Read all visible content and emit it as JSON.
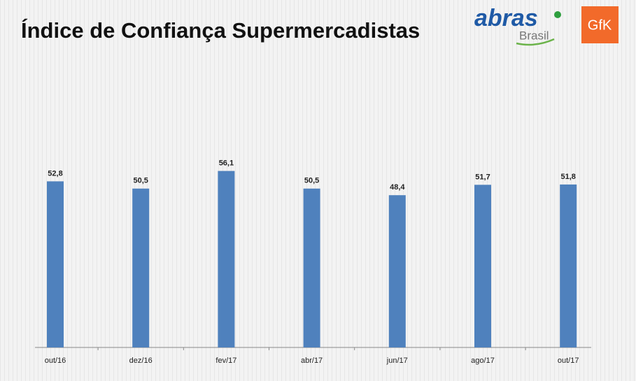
{
  "chart_data": {
    "type": "bar",
    "title": "Índice de Confiança Supermercadistas",
    "categories": [
      "out/16",
      "dez/16",
      "fev/17",
      "abr/17",
      "jun/17",
      "ago/17",
      "out/17"
    ],
    "values": [
      52.8,
      50.5,
      56.1,
      50.5,
      48.4,
      51.7,
      51.8
    ],
    "value_labels": [
      "52,8",
      "50,5",
      "56,1",
      "50,5",
      "48,4",
      "51,7",
      "51,8"
    ],
    "color": "#4f81bd",
    "ylim": [
      0,
      80
    ]
  },
  "logos": {
    "abras": "abras",
    "brasil": "Brasil",
    "gfk": "GfK"
  }
}
